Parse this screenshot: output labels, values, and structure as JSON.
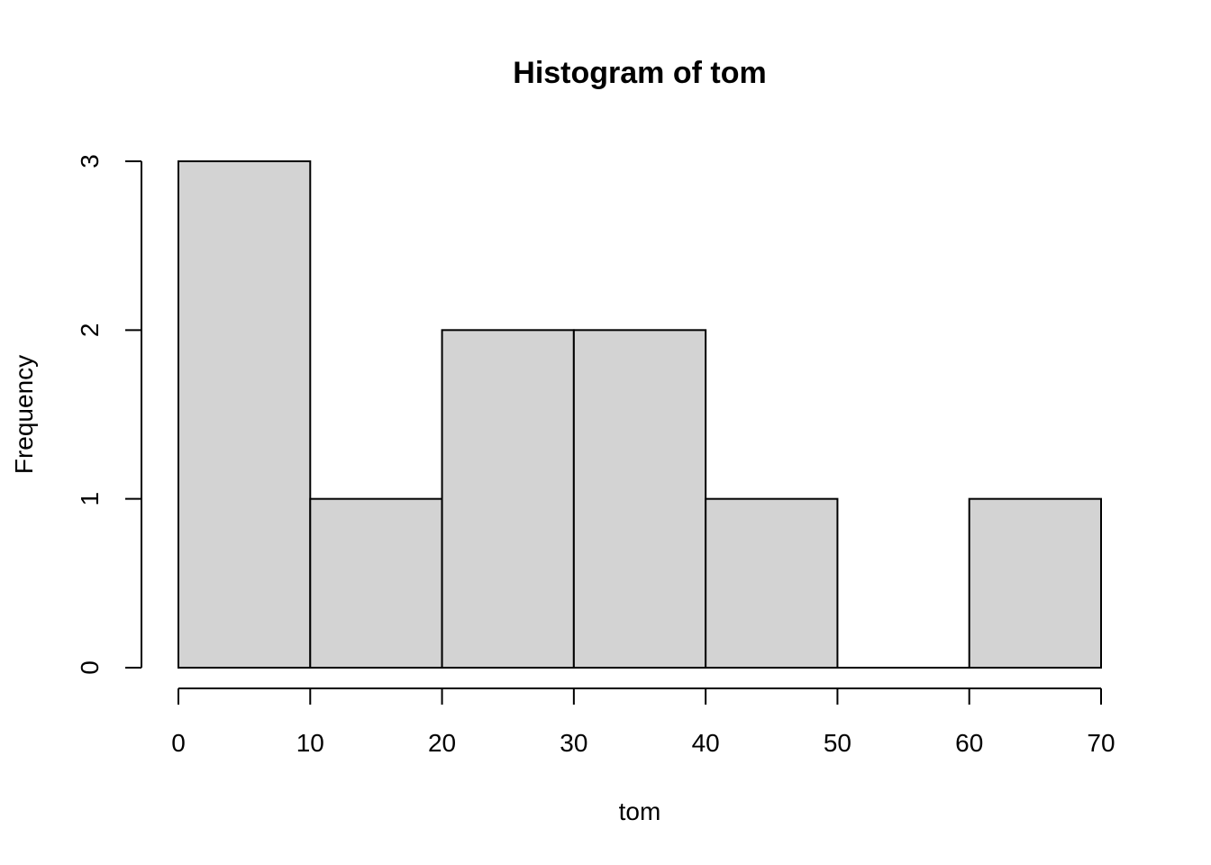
{
  "chart_data": {
    "type": "bar",
    "title": "Histogram of tom",
    "xlabel": "tom",
    "ylabel": "Frequency",
    "bins": [
      {
        "start": 0,
        "end": 10,
        "count": 3
      },
      {
        "start": 10,
        "end": 20,
        "count": 1
      },
      {
        "start": 20,
        "end": 30,
        "count": 2
      },
      {
        "start": 30,
        "end": 40,
        "count": 2
      },
      {
        "start": 40,
        "end": 50,
        "count": 1
      },
      {
        "start": 50,
        "end": 60,
        "count": 0
      },
      {
        "start": 60,
        "end": 70,
        "count": 1
      }
    ],
    "xlim": [
      0,
      70
    ],
    "ylim": [
      0,
      3
    ],
    "x_ticks": [
      "0",
      "10",
      "20",
      "30",
      "40",
      "50",
      "60",
      "70"
    ],
    "y_ticks": [
      "0",
      "1",
      "2",
      "3"
    ],
    "grid": false,
    "colors": {
      "bar_fill": "#d3d3d3",
      "bar_stroke": "#000000"
    }
  }
}
